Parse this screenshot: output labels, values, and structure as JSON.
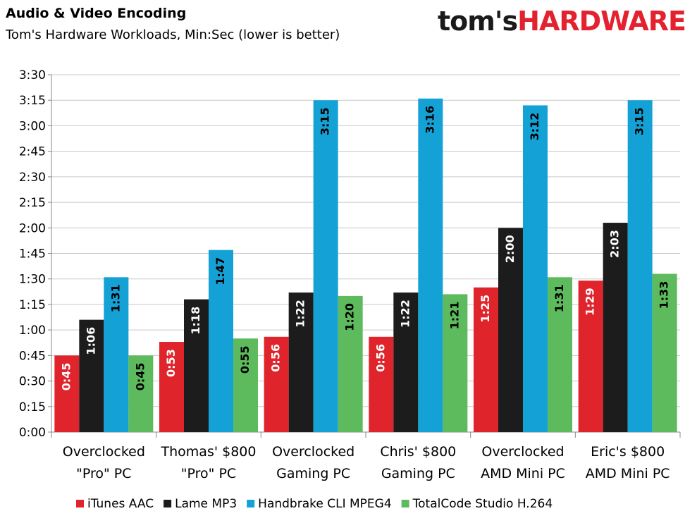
{
  "brand": {
    "part1": "tom's",
    "part2": "HARDWARE"
  },
  "chart_data": {
    "type": "bar",
    "title": "Audio & Video Encoding",
    "subtitle": "Tom's Hardware Workloads, Min:Sec (lower is better)",
    "categories": [
      [
        "Overclocked",
        "\"Pro\" PC"
      ],
      [
        "Thomas' $800",
        "\"Pro\" PC"
      ],
      [
        "Overclocked",
        "Gaming PC"
      ],
      [
        "Chris' $800",
        "Gaming PC"
      ],
      [
        "Overclocked",
        "AMD Mini PC"
      ],
      [
        "Eric's $800",
        "AMD Mini PC"
      ]
    ],
    "ylim": [
      0,
      210
    ],
    "ytick_step": 15,
    "ytick_labels": [
      "0:00",
      "0:15",
      "0:30",
      "0:45",
      "1:00",
      "1:15",
      "1:30",
      "1:45",
      "2:00",
      "2:15",
      "2:30",
      "2:45",
      "3:00",
      "3:15",
      "3:30"
    ],
    "grid": true,
    "legend_position": "bottom",
    "series": [
      {
        "name": "iTunes AAC",
        "color": "#e0242c",
        "values": [
          45,
          53,
          56,
          56,
          85,
          89
        ],
        "labels": [
          "0:45",
          "0:53",
          "0:56",
          "0:56",
          "1:25",
          "1:29"
        ]
      },
      {
        "name": "Lame MP3",
        "color": "#1c1c1c",
        "values": [
          66,
          78,
          82,
          82,
          120,
          123
        ],
        "labels": [
          "1:06",
          "1:18",
          "1:22",
          "1:22",
          "2:00",
          "2:03"
        ]
      },
      {
        "name": "Handbrake CLI MPEG4",
        "color": "#14a2d6",
        "values": [
          91,
          107,
          195,
          196,
          192,
          195
        ],
        "labels": [
          "1:31",
          "1:47",
          "3:15",
          "3:16",
          "3:12",
          "3:15"
        ]
      },
      {
        "name": "TotalCode Studio H.264",
        "color": "#5dbb5d",
        "values": [
          45,
          55,
          80,
          81,
          91,
          93
        ],
        "labels": [
          "0:45",
          "0:55",
          "1:20",
          "1:21",
          "1:31",
          "1:33"
        ]
      }
    ]
  }
}
